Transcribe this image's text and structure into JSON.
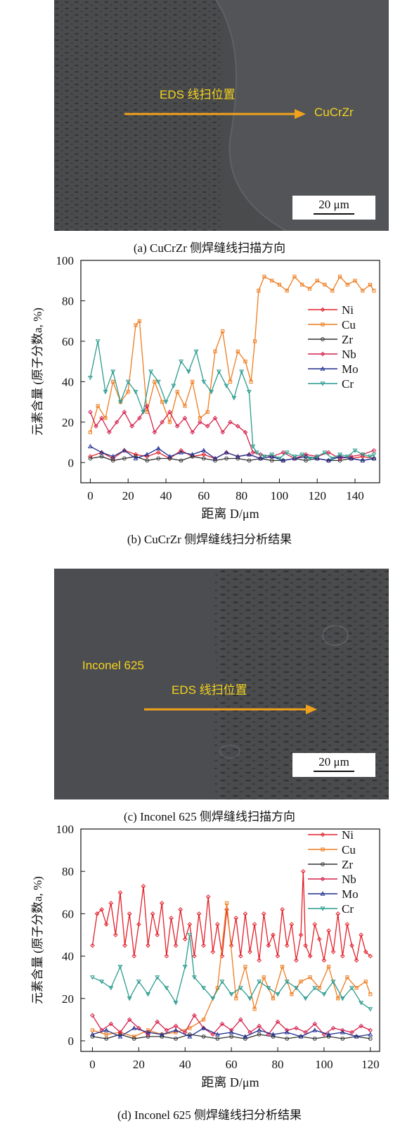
{
  "panel_a": {
    "arrow_label": "EDS 线扫位置",
    "region_label": "CuCrZr",
    "scale_bar": "20 μm",
    "caption": "(a) CuCrZr 侧焊缝线扫描方向"
  },
  "panel_b_caption": "(b) CuCrZr 侧焊缝线扫分析结果",
  "panel_c": {
    "region_label": "Inconel 625",
    "arrow_label": "EDS 线扫位置",
    "scale_bar": "20 μm",
    "caption": "(c) Inconel 625 侧焊缝线扫描方向"
  },
  "panel_d_caption": "(d) Inconel 625 侧焊缝线扫分析结果",
  "colors": {
    "sem_bg": "#4a4b4d",
    "label_yellow": "#f4d31f",
    "arrow_orange": "#f0a21c",
    "Ni": "#e2202a",
    "Cu": "#ee7b1d",
    "Zr": "#333333",
    "Nb": "#d6214b",
    "Mo": "#1f2e8f",
    "Cr": "#2b9b8f"
  },
  "chart_data": [
    {
      "type": "line",
      "xlabel": "距离 D/μm",
      "ylabel": "元素含量 (原子分数a, %)",
      "xlim": [
        -5,
        153
      ],
      "ylim": [
        -10,
        100
      ],
      "xticks": [
        "0",
        "20",
        "40",
        "60",
        "80",
        "100",
        "120",
        "140"
      ],
      "yticks": [
        "0",
        "20",
        "40",
        "60",
        "80",
        "100"
      ],
      "legend_position": "right",
      "series": [
        {
          "name": "Ni",
          "x": [
            0,
            6,
            12,
            18,
            24,
            30,
            36,
            42,
            48,
            54,
            60,
            66,
            72,
            78,
            84,
            90,
            96,
            102,
            108,
            114,
            120,
            126,
            132,
            138,
            144,
            150
          ],
          "values": [
            3,
            5,
            2,
            6,
            4,
            3,
            5,
            2,
            6,
            3,
            4,
            2,
            5,
            3,
            4,
            2,
            3,
            1,
            2,
            3,
            2,
            1,
            3,
            2,
            3,
            2
          ]
        },
        {
          "name": "Cu",
          "x": [
            0,
            4,
            8,
            12,
            16,
            20,
            24,
            26,
            30,
            34,
            38,
            42,
            46,
            50,
            54,
            58,
            62,
            66,
            70,
            74,
            78,
            82,
            85,
            87,
            89,
            92,
            96,
            100,
            104,
            108,
            112,
            116,
            120,
            124,
            128,
            132,
            136,
            140,
            144,
            148,
            150
          ],
          "values": [
            15,
            28,
            22,
            40,
            30,
            35,
            68,
            70,
            25,
            40,
            30,
            20,
            35,
            28,
            40,
            22,
            25,
            55,
            65,
            40,
            55,
            50,
            40,
            60,
            85,
            92,
            90,
            88,
            85,
            92,
            88,
            86,
            90,
            88,
            85,
            92,
            88,
            90,
            85,
            88,
            85
          ]
        },
        {
          "name": "Zr",
          "x": [
            0,
            6,
            12,
            18,
            24,
            30,
            36,
            42,
            48,
            54,
            60,
            66,
            72,
            78,
            84,
            90,
            96,
            102,
            108,
            114,
            120,
            126,
            132,
            138,
            144,
            150
          ],
          "values": [
            2,
            3,
            1,
            2,
            3,
            1,
            2,
            2,
            1,
            3,
            2,
            1,
            2,
            2,
            1,
            2,
            1,
            1,
            2,
            1,
            2,
            1,
            1,
            2,
            1,
            2
          ]
        },
        {
          "name": "Nb",
          "x": [
            0,
            3,
            6,
            10,
            14,
            18,
            22,
            26,
            30,
            34,
            38,
            42,
            46,
            50,
            54,
            58,
            62,
            66,
            70,
            74,
            78,
            82,
            86,
            90,
            96,
            102,
            108,
            114,
            120,
            126,
            132,
            138,
            144,
            150
          ],
          "values": [
            25,
            18,
            22,
            15,
            20,
            25,
            18,
            22,
            28,
            15,
            20,
            25,
            18,
            22,
            15,
            20,
            18,
            22,
            15,
            20,
            18,
            15,
            5,
            4,
            3,
            5,
            2,
            4,
            3,
            5,
            2,
            3,
            4,
            6
          ]
        },
        {
          "name": "Mo",
          "x": [
            0,
            6,
            12,
            18,
            24,
            30,
            36,
            42,
            48,
            54,
            60,
            66,
            72,
            78,
            84,
            90,
            96,
            102,
            108,
            114,
            120,
            126,
            132,
            138,
            144,
            150
          ],
          "values": [
            8,
            5,
            3,
            6,
            2,
            4,
            7,
            3,
            5,
            4,
            6,
            2,
            5,
            3,
            4,
            2,
            3,
            1,
            2,
            3,
            2,
            1,
            3,
            2,
            1,
            2
          ]
        },
        {
          "name": "Cr",
          "x": [
            0,
            4,
            8,
            12,
            16,
            20,
            24,
            28,
            32,
            36,
            40,
            44,
            48,
            52,
            56,
            60,
            64,
            68,
            72,
            76,
            80,
            84,
            86,
            88,
            92,
            96,
            100,
            104,
            108,
            112,
            116,
            120,
            124,
            128,
            132,
            136,
            140,
            144,
            148,
            150
          ],
          "values": [
            42,
            60,
            35,
            45,
            30,
            40,
            35,
            25,
            45,
            40,
            30,
            38,
            50,
            45,
            55,
            40,
            35,
            45,
            38,
            32,
            45,
            35,
            8,
            5,
            3,
            4,
            2,
            5,
            3,
            4,
            2,
            3,
            5,
            2,
            4,
            3,
            6,
            4,
            3,
            4
          ]
        }
      ]
    },
    {
      "type": "line",
      "xlabel": "距离 D/μm",
      "ylabel": "元素含量 (原子分数a, %)",
      "xlim": [
        -5,
        124
      ],
      "ylim": [
        -5,
        100
      ],
      "xticks": [
        "0",
        "20",
        "40",
        "60",
        "80",
        "100",
        "120"
      ],
      "yticks": [
        "0",
        "20",
        "40",
        "60",
        "80",
        "100"
      ],
      "legend_position": "top-right",
      "series": [
        {
          "name": "Ni",
          "x": [
            0,
            2,
            4,
            6,
            8,
            10,
            12,
            14,
            16,
            18,
            20,
            22,
            24,
            26,
            28,
            30,
            32,
            34,
            36,
            38,
            40,
            42,
            44,
            46,
            48,
            50,
            52,
            54,
            56,
            58,
            60,
            62,
            64,
            66,
            68,
            70,
            72,
            74,
            76,
            78,
            80,
            82,
            84,
            86,
            88,
            90,
            91,
            92,
            94,
            96,
            98,
            100,
            102,
            104,
            106,
            108,
            110,
            112,
            114,
            116,
            118,
            120
          ],
          "values": [
            45,
            60,
            62,
            55,
            65,
            50,
            70,
            45,
            60,
            40,
            55,
            73,
            45,
            60,
            50,
            65,
            40,
            58,
            45,
            62,
            48,
            55,
            40,
            60,
            45,
            68,
            42,
            55,
            40,
            62,
            45,
            58,
            40,
            60,
            42,
            55,
            38,
            60,
            45,
            50,
            40,
            62,
            45,
            55,
            38,
            50,
            80,
            45,
            40,
            55,
            48,
            38,
            52,
            42,
            60,
            40,
            55,
            45,
            38,
            50,
            42,
            40
          ]
        },
        {
          "name": "Cu",
          "x": [
            0,
            6,
            12,
            18,
            24,
            30,
            36,
            42,
            48,
            54,
            58,
            62,
            66,
            70,
            74,
            78,
            82,
            86,
            90,
            94,
            98,
            102,
            106,
            110,
            114,
            118,
            120
          ],
          "values": [
            5,
            3,
            4,
            2,
            5,
            3,
            4,
            6,
            10,
            25,
            65,
            20,
            35,
            15,
            30,
            20,
            35,
            22,
            28,
            30,
            25,
            35,
            20,
            30,
            25,
            28,
            22
          ]
        },
        {
          "name": "Zr",
          "x": [
            0,
            6,
            12,
            18,
            24,
            30,
            36,
            42,
            48,
            54,
            60,
            66,
            72,
            78,
            84,
            90,
            96,
            102,
            108,
            114,
            120
          ],
          "values": [
            2,
            1,
            3,
            1,
            2,
            2,
            1,
            3,
            2,
            1,
            2,
            1,
            3,
            2,
            1,
            2,
            1,
            2,
            1,
            2,
            1
          ]
        },
        {
          "name": "Nb",
          "x": [
            0,
            4,
            8,
            12,
            16,
            20,
            24,
            28,
            32,
            36,
            40,
            44,
            48,
            52,
            56,
            60,
            64,
            68,
            72,
            76,
            80,
            84,
            88,
            92,
            96,
            100,
            104,
            108,
            112,
            116,
            120
          ],
          "values": [
            12,
            5,
            8,
            4,
            10,
            6,
            3,
            9,
            5,
            7,
            4,
            12,
            6,
            3,
            8,
            5,
            10,
            4,
            7,
            3,
            9,
            5,
            6,
            4,
            8,
            3,
            6,
            5,
            4,
            7,
            5
          ]
        },
        {
          "name": "Mo",
          "x": [
            0,
            6,
            12,
            18,
            24,
            30,
            36,
            42,
            48,
            54,
            60,
            66,
            72,
            78,
            84,
            90,
            96,
            102,
            108,
            114,
            120
          ],
          "values": [
            3,
            5,
            2,
            6,
            4,
            3,
            5,
            2,
            6,
            3,
            4,
            2,
            5,
            3,
            4,
            2,
            5,
            3,
            4,
            2,
            3
          ]
        },
        {
          "name": "Cr",
          "x": [
            0,
            4,
            8,
            12,
            16,
            20,
            24,
            28,
            32,
            36,
            40,
            42,
            44,
            48,
            52,
            56,
            60,
            64,
            68,
            72,
            76,
            80,
            84,
            88,
            92,
            96,
            100,
            104,
            108,
            112,
            116,
            120
          ],
          "values": [
            30,
            28,
            25,
            35,
            20,
            28,
            22,
            30,
            25,
            18,
            35,
            50,
            30,
            25,
            20,
            28,
            22,
            25,
            20,
            28,
            25,
            22,
            28,
            25,
            20,
            25,
            22,
            28,
            20,
            25,
            18,
            15
          ]
        }
      ]
    }
  ]
}
